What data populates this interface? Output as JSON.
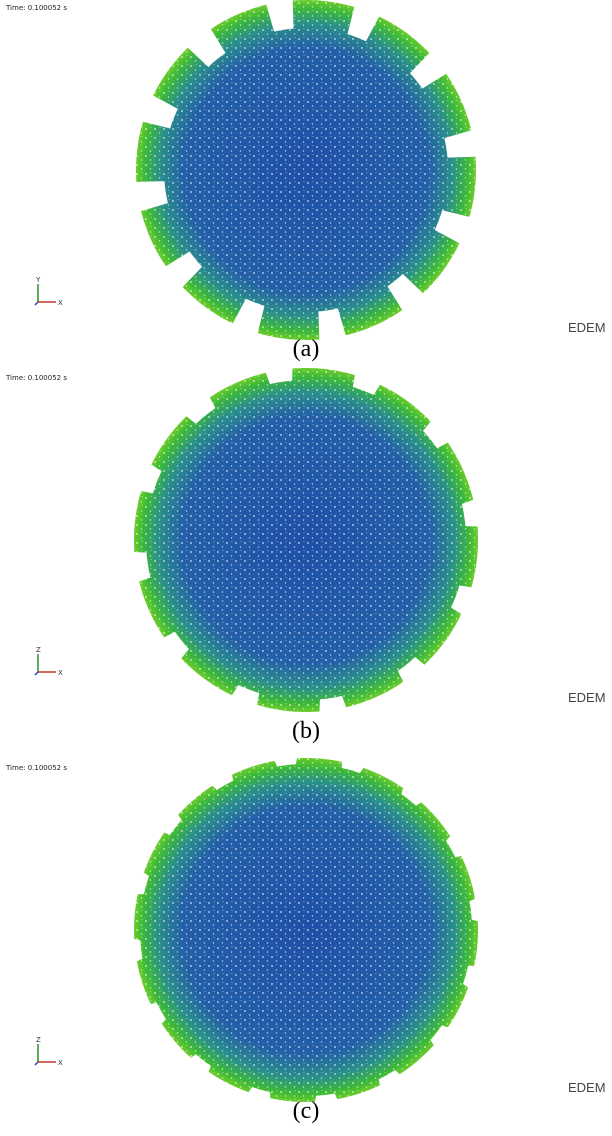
{
  "panels": [
    {
      "time": "Time: 0.100052 s",
      "axis_vertical": "Y",
      "axis_horizontal": "X",
      "logo": "EDEM",
      "caption": "(a)"
    },
    {
      "time": "Time: 0.100052 s",
      "axis_vertical": "Z",
      "axis_horizontal": "X",
      "logo": "EDEM",
      "caption": "(b)"
    },
    {
      "time": "Time: 0.100052 s",
      "axis_vertical": "Z",
      "axis_horizontal": "X",
      "logo": "EDEM",
      "caption": "(c)"
    }
  ]
}
